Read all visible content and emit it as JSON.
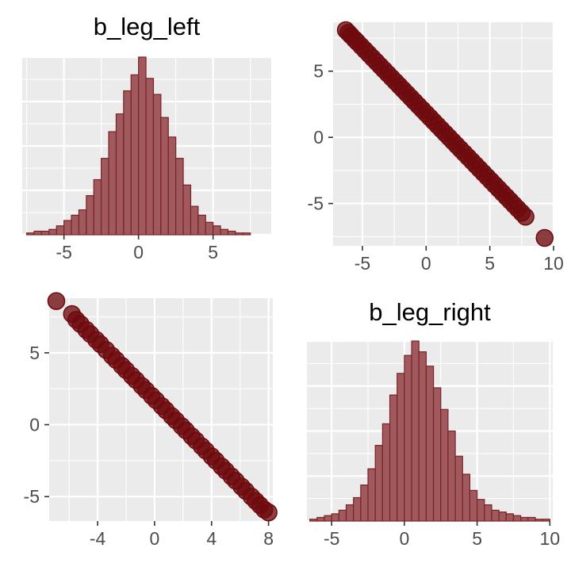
{
  "chart_data": [
    {
      "type": "histogram",
      "title": "b_leg_left",
      "xlim": [
        -7.8,
        8.9
      ],
      "bin_width": 0.5,
      "bins_start": -7.5,
      "counts": [
        0.01,
        0.02,
        0.02,
        0.03,
        0.05,
        0.08,
        0.11,
        0.14,
        0.22,
        0.31,
        0.43,
        0.58,
        0.68,
        0.81,
        0.9,
        1.0,
        0.88,
        0.79,
        0.66,
        0.55,
        0.43,
        0.28,
        0.16,
        0.11,
        0.07,
        0.05,
        0.03,
        0.02,
        0.01,
        0.01
      ],
      "x_ticks": [
        -5,
        0,
        5
      ],
      "fill": "#a05a5e",
      "stroke": "#7a2226"
    },
    {
      "type": "scatter",
      "xlim": [
        -7.3,
        10.0
      ],
      "ylim": [
        -8.2,
        8.7
      ],
      "x_ticks": [
        -5,
        0,
        5,
        10
      ],
      "y_ticks": [
        -5,
        0,
        5
      ],
      "points": [
        [
          -6.3,
          8.1
        ],
        [
          -6.1,
          7.9
        ],
        [
          -5.9,
          7.7
        ],
        [
          -5.6,
          7.4
        ],
        [
          -5.4,
          7.2
        ],
        [
          -5.1,
          6.9
        ],
        [
          -4.8,
          6.6
        ],
        [
          -4.5,
          6.3
        ],
        [
          -4.2,
          6.0
        ],
        [
          -3.9,
          5.7
        ],
        [
          -3.6,
          5.4
        ],
        [
          -3.3,
          5.1
        ],
        [
          -3.0,
          4.8
        ],
        [
          -2.7,
          4.5
        ],
        [
          -2.4,
          4.2
        ],
        [
          -2.1,
          3.9
        ],
        [
          -1.8,
          3.6
        ],
        [
          -1.5,
          3.3
        ],
        [
          -1.2,
          3.0
        ],
        [
          -0.9,
          2.7
        ],
        [
          -0.6,
          2.4
        ],
        [
          -0.3,
          2.1
        ],
        [
          0.0,
          1.8
        ],
        [
          0.3,
          1.5
        ],
        [
          0.6,
          1.2
        ],
        [
          0.9,
          0.9
        ],
        [
          1.2,
          0.6
        ],
        [
          1.5,
          0.3
        ],
        [
          1.8,
          0.0
        ],
        [
          2.1,
          -0.3
        ],
        [
          2.4,
          -0.6
        ],
        [
          2.7,
          -0.9
        ],
        [
          3.0,
          -1.2
        ],
        [
          3.3,
          -1.5
        ],
        [
          3.6,
          -1.8
        ],
        [
          3.9,
          -2.1
        ],
        [
          4.2,
          -2.4
        ],
        [
          4.5,
          -2.7
        ],
        [
          4.8,
          -3.0
        ],
        [
          5.1,
          -3.3
        ],
        [
          5.4,
          -3.6
        ],
        [
          5.7,
          -3.9
        ],
        [
          6.0,
          -4.2
        ],
        [
          6.3,
          -4.5
        ],
        [
          6.6,
          -4.8
        ],
        [
          6.9,
          -5.1
        ],
        [
          7.2,
          -5.4
        ],
        [
          7.5,
          -5.7
        ],
        [
          7.8,
          -6.0
        ],
        [
          9.3,
          -7.6
        ]
      ],
      "point_color": "#6e0a0e"
    },
    {
      "type": "scatter",
      "xlim": [
        -7.4,
        8.3
      ],
      "ylim": [
        -6.7,
        8.8
      ],
      "x_ticks": [
        -4,
        0,
        4,
        8
      ],
      "y_ticks": [
        -5,
        0,
        5
      ],
      "points": [
        [
          -6.9,
          8.6
        ],
        [
          -5.8,
          7.7
        ],
        [
          -5.5,
          7.3
        ],
        [
          -5.2,
          7.0
        ],
        [
          -4.8,
          6.6
        ],
        [
          -4.5,
          6.3
        ],
        [
          -4.1,
          5.9
        ],
        [
          -3.8,
          5.6
        ],
        [
          -3.4,
          5.2
        ],
        [
          -3.0,
          4.8
        ],
        [
          -2.7,
          4.5
        ],
        [
          -2.3,
          4.1
        ],
        [
          -2.0,
          3.8
        ],
        [
          -1.6,
          3.4
        ],
        [
          -1.3,
          3.1
        ],
        [
          -0.9,
          2.7
        ],
        [
          -0.6,
          2.4
        ],
        [
          -0.2,
          2.0
        ],
        [
          0.1,
          1.7
        ],
        [
          0.5,
          1.3
        ],
        [
          0.8,
          1.0
        ],
        [
          1.2,
          0.6
        ],
        [
          1.5,
          0.3
        ],
        [
          1.9,
          -0.1
        ],
        [
          2.2,
          -0.4
        ],
        [
          2.6,
          -0.8
        ],
        [
          2.9,
          -1.1
        ],
        [
          3.3,
          -1.5
        ],
        [
          3.6,
          -1.8
        ],
        [
          4.0,
          -2.2
        ],
        [
          4.3,
          -2.5
        ],
        [
          4.7,
          -2.9
        ],
        [
          5.0,
          -3.2
        ],
        [
          5.4,
          -3.6
        ],
        [
          5.7,
          -3.9
        ],
        [
          6.1,
          -4.3
        ],
        [
          6.4,
          -4.6
        ],
        [
          6.8,
          -5.0
        ],
        [
          7.1,
          -5.3
        ],
        [
          7.4,
          -5.6
        ],
        [
          7.7,
          -5.9
        ],
        [
          8.0,
          -6.1
        ]
      ],
      "point_color": "#6e0a0e"
    },
    {
      "type": "histogram",
      "title": "b_leg_right",
      "xlim": [
        -6.7,
        10.2
      ],
      "bin_width": 0.5,
      "bins_start": -6.5,
      "counts": [
        0.01,
        0.02,
        0.03,
        0.04,
        0.06,
        0.09,
        0.13,
        0.2,
        0.29,
        0.42,
        0.54,
        0.7,
        0.82,
        0.92,
        1.0,
        0.94,
        0.86,
        0.74,
        0.62,
        0.5,
        0.36,
        0.26,
        0.17,
        0.12,
        0.09,
        0.06,
        0.05,
        0.04,
        0.03,
        0.02,
        0.02,
        0.01,
        0.01
      ],
      "x_ticks": [
        -5,
        0,
        5,
        10
      ],
      "fill": "#a05a5e",
      "stroke": "#7a2226"
    }
  ]
}
